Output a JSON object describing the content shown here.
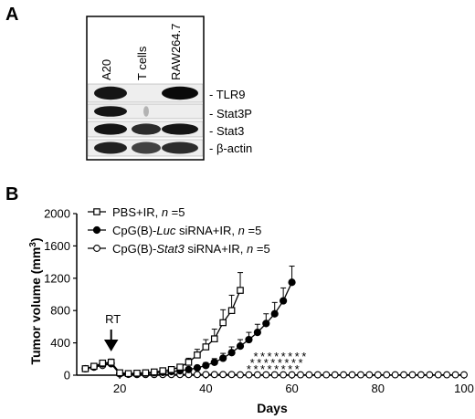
{
  "panel_a": {
    "letter": "A",
    "lanes": [
      "A20",
      "T cells",
      "RAW264.7"
    ],
    "bands": [
      {
        "label": "- TLR9",
        "intensity": [
          0.95,
          0.0,
          1.0
        ]
      },
      {
        "label": "- Stat3P",
        "intensity": [
          0.95,
          0.25,
          0.0
        ]
      },
      {
        "label": "- Stat3",
        "intensity": [
          0.95,
          0.85,
          0.95
        ]
      },
      {
        "label": "- β-actin",
        "intensity": [
          0.9,
          0.75,
          0.85
        ]
      }
    ]
  },
  "panel_b": {
    "letter": "B",
    "annotation_rt": "RT",
    "significance_marks": [
      "*",
      "*",
      "*",
      "*",
      "*",
      "*",
      "*",
      "*",
      "*",
      "*",
      "*",
      "*",
      "*",
      "*",
      "*",
      "*",
      "*",
      "*",
      "*",
      "*",
      "*",
      "*",
      "*",
      "*"
    ],
    "chart_data": {
      "type": "line",
      "xlabel": "Days",
      "ylabel_main": "Tumor volume (mm",
      "ylabel_sup": "3",
      "ylabel_end": ")",
      "xlim": [
        10,
        100
      ],
      "ylim": [
        0,
        2000
      ],
      "xticks": [
        20,
        40,
        60,
        80,
        100
      ],
      "yticks": [
        0,
        400,
        800,
        1200,
        1600,
        2000
      ],
      "rt_day": 18,
      "series": [
        {
          "key": "pbs",
          "legend_parts": [
            {
              "t": "PBS+IR, ",
              "i": false
            },
            {
              "t": "n",
              "i": true
            },
            {
              "t": " =5",
              "i": false
            }
          ],
          "marker": "square-open",
          "x": [
            12,
            14,
            16,
            18,
            20,
            22,
            24,
            26,
            28,
            30,
            32,
            34,
            36,
            38,
            40,
            42,
            44,
            46,
            48
          ],
          "y": [
            80,
            110,
            150,
            160,
            30,
            20,
            25,
            30,
            40,
            55,
            70,
            100,
            160,
            250,
            350,
            450,
            650,
            800,
            1050
          ],
          "err": [
            10,
            15,
            20,
            40,
            10,
            8,
            10,
            10,
            15,
            20,
            25,
            30,
            50,
            70,
            90,
            120,
            160,
            190,
            220
          ]
        },
        {
          "key": "luc",
          "legend_parts": [
            {
              "t": "CpG(B)-",
              "i": false
            },
            {
              "t": "Luc",
              "i": true
            },
            {
              "t": " siRNA+IR, ",
              "i": false
            },
            {
              "t": "n",
              "i": true
            },
            {
              "t": " =5",
              "i": false
            }
          ],
          "marker": "circle-filled",
          "x": [
            12,
            14,
            16,
            18,
            20,
            22,
            24,
            26,
            28,
            30,
            32,
            34,
            36,
            38,
            40,
            42,
            44,
            46,
            48,
            50,
            52,
            54,
            56,
            58,
            60
          ],
          "y": [
            80,
            100,
            140,
            150,
            20,
            15,
            20,
            25,
            30,
            35,
            45,
            55,
            70,
            90,
            120,
            160,
            210,
            280,
            360,
            440,
            530,
            640,
            760,
            920,
            1150
          ],
          "err": [
            10,
            15,
            20,
            30,
            10,
            8,
            8,
            10,
            10,
            12,
            15,
            20,
            25,
            30,
            35,
            45,
            60,
            70,
            80,
            90,
            100,
            120,
            140,
            160,
            200
          ]
        },
        {
          "key": "stat3",
          "legend_parts": [
            {
              "t": "CpG(B)-",
              "i": false
            },
            {
              "t": "Stat3",
              "i": true
            },
            {
              "t": " siRNA+IR, ",
              "i": false
            },
            {
              "t": "n",
              "i": true
            },
            {
              "t": " =5",
              "i": false
            }
          ],
          "marker": "circle-open",
          "x": [
            12,
            14,
            16,
            18,
            20,
            22,
            24,
            26,
            28,
            30,
            32,
            34,
            36,
            38,
            40,
            42,
            44,
            46,
            48,
            50,
            52,
            54,
            56,
            58,
            60,
            62,
            64,
            66,
            68,
            70,
            72,
            74,
            76,
            78,
            80,
            82,
            84,
            86,
            88,
            90,
            92,
            94,
            96,
            98,
            100
          ],
          "y": [
            80,
            100,
            120,
            140,
            15,
            10,
            8,
            8,
            8,
            8,
            8,
            8,
            8,
            8,
            8,
            8,
            8,
            8,
            5,
            5,
            5,
            5,
            5,
            5,
            5,
            5,
            5,
            5,
            5,
            5,
            5,
            5,
            5,
            5,
            5,
            5,
            5,
            5,
            5,
            5,
            5,
            5,
            5,
            5,
            5
          ],
          "err": [
            10,
            15,
            15,
            20,
            5,
            4,
            4,
            4,
            4,
            4,
            4,
            4,
            4,
            4,
            4,
            4,
            4,
            4,
            2,
            2,
            2,
            2,
            2,
            2,
            2,
            2,
            2,
            2,
            2,
            2,
            2,
            2,
            2,
            2,
            2,
            2,
            2,
            2,
            2,
            2,
            2,
            2,
            2,
            2,
            2
          ]
        }
      ]
    }
  }
}
